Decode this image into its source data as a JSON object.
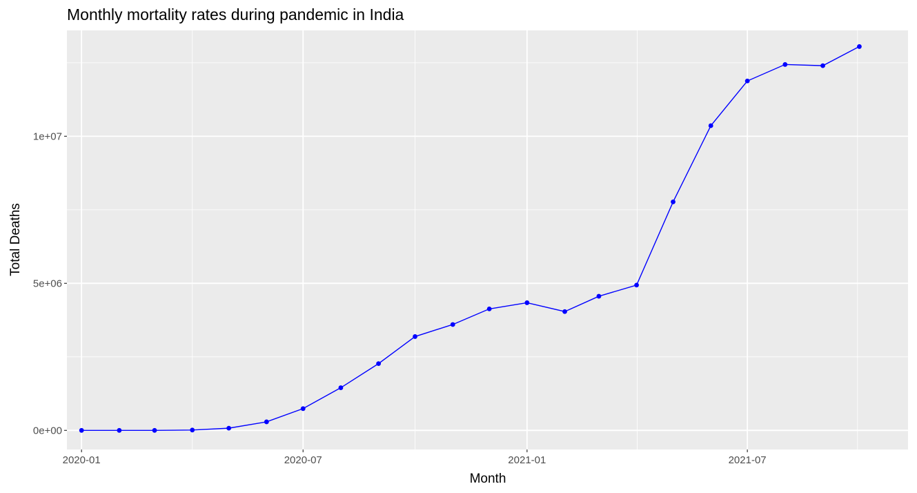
{
  "chart_data": {
    "type": "line",
    "title": "Monthly mortality rates during pandemic in India",
    "xlabel": "Month",
    "ylabel": "Total Deaths",
    "x_tick_labels": [
      "2020-01",
      "2020-07",
      "2021-01",
      "2021-07"
    ],
    "x_ticks": [
      "2020-01-01",
      "2020-07-01",
      "2021-01-01",
      "2021-07-01"
    ],
    "y_tick_labels": [
      "0e+00",
      "5e+06",
      "1e+07"
    ],
    "y_ticks": [
      0,
      5000000,
      10000000
    ],
    "xlim": [
      "2019-12-20",
      "2021-11-10"
    ],
    "ylim": [
      -650000,
      13600000
    ],
    "grid": true,
    "legend": "none",
    "colors": {
      "line": "#0000ff",
      "panel": "#ebebeb",
      "grid": "#ffffff"
    },
    "series": [
      {
        "x": [
          "2020-01-01",
          "2020-02-01",
          "2020-03-01",
          "2020-04-01",
          "2020-05-01",
          "2020-06-01",
          "2020-07-01",
          "2020-08-01",
          "2020-09-01",
          "2020-10-01",
          "2020-11-01",
          "2020-12-01",
          "2021-01-01",
          "2021-02-01",
          "2021-03-01",
          "2021-04-01",
          "2021-05-01",
          "2021-06-01",
          "2021-07-01",
          "2021-08-01",
          "2021-09-01",
          "2021-10-01"
        ],
        "values": [
          0,
          0,
          0,
          12000,
          75000,
          290000,
          740000,
          1450000,
          2270000,
          3190000,
          3600000,
          4130000,
          4340000,
          4040000,
          4560000,
          4940000,
          7770000,
          10360000,
          11880000,
          12440000,
          12400000,
          13050000
        ]
      }
    ]
  }
}
